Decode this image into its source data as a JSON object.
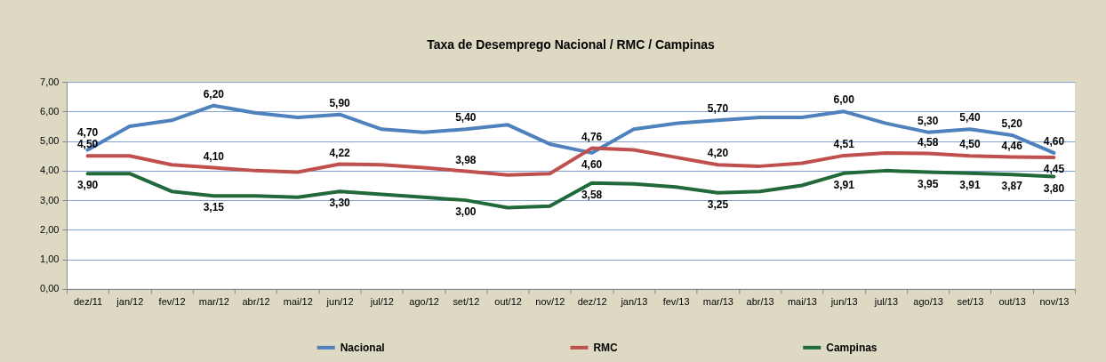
{
  "chart_data": {
    "type": "line",
    "title": "Taxa de Desemprego Nacional / RMC / Campinas",
    "categories": [
      "dez/11",
      "jan/12",
      "fev/12",
      "mar/12",
      "abr/12",
      "mai/12",
      "jun/12",
      "jul/12",
      "ago/12",
      "set/12",
      "out/12",
      "nov/12",
      "dez/12",
      "jan/13",
      "fev/13",
      "mar/13",
      "abr/13",
      "mai/13",
      "jun/13",
      "jul/13",
      "ago/13",
      "set/13",
      "out/13",
      "nov/13"
    ],
    "series": [
      {
        "name": "Nacional",
        "color": "#4f81bd",
        "values": [
          4.7,
          5.5,
          5.7,
          6.2,
          5.95,
          5.8,
          5.9,
          5.4,
          5.3,
          5.4,
          5.55,
          4.9,
          4.6,
          5.4,
          5.6,
          5.7,
          5.8,
          5.8,
          6.0,
          5.6,
          5.3,
          5.4,
          5.2,
          4.6
        ],
        "value_labels": [
          "4,70",
          null,
          null,
          "6,20",
          null,
          null,
          "5,90",
          null,
          null,
          "5,40",
          null,
          null,
          "4,60",
          null,
          null,
          "5,70",
          null,
          null,
          "6,00",
          null,
          "5,30",
          "5,40",
          "5,20",
          "4,60"
        ]
      },
      {
        "name": "RMC",
        "color": "#c0504d",
        "values": [
          4.5,
          4.5,
          4.2,
          4.1,
          4.0,
          3.95,
          4.22,
          4.2,
          4.1,
          3.98,
          3.85,
          3.9,
          4.76,
          4.7,
          4.45,
          4.2,
          4.15,
          4.25,
          4.51,
          4.6,
          4.58,
          4.5,
          4.46,
          4.45
        ],
        "value_labels": [
          "4,50",
          null,
          null,
          "4,10",
          null,
          null,
          "4,22",
          null,
          null,
          "3,98",
          null,
          null,
          "4,76",
          null,
          null,
          "4,20",
          null,
          null,
          "4,51",
          null,
          "4,58",
          "4,50",
          "4,46",
          "4,45"
        ]
      },
      {
        "name": "Campinas",
        "color": "#21693a",
        "values": [
          3.9,
          3.9,
          3.3,
          3.15,
          3.15,
          3.1,
          3.3,
          3.2,
          3.1,
          3.0,
          2.75,
          2.8,
          3.58,
          3.55,
          3.45,
          3.25,
          3.3,
          3.5,
          3.91,
          4.0,
          3.95,
          3.91,
          3.87,
          3.8
        ],
        "value_labels": [
          "3,90",
          null,
          null,
          "3,15",
          null,
          null,
          "3,30",
          null,
          null,
          "3,00",
          null,
          null,
          "3,58",
          null,
          null,
          "3,25",
          null,
          null,
          "3,91",
          null,
          "3,95",
          "3,91",
          "3,87",
          "3,80"
        ]
      }
    ],
    "ylim": [
      0,
      7
    ],
    "yticks": [
      {
        "value": 0,
        "label": "0,00"
      },
      {
        "value": 1,
        "label": "1,00"
      },
      {
        "value": 2,
        "label": "2,00"
      },
      {
        "value": 3,
        "label": "3,00"
      },
      {
        "value": 4,
        "label": "4,00"
      },
      {
        "value": 5,
        "label": "5,00"
      },
      {
        "value": 6,
        "label": "6,00"
      },
      {
        "value": 7,
        "label": "7,00"
      }
    ],
    "grid": "y",
    "legend": "bottom",
    "marker": "none",
    "line_style": "solid"
  }
}
